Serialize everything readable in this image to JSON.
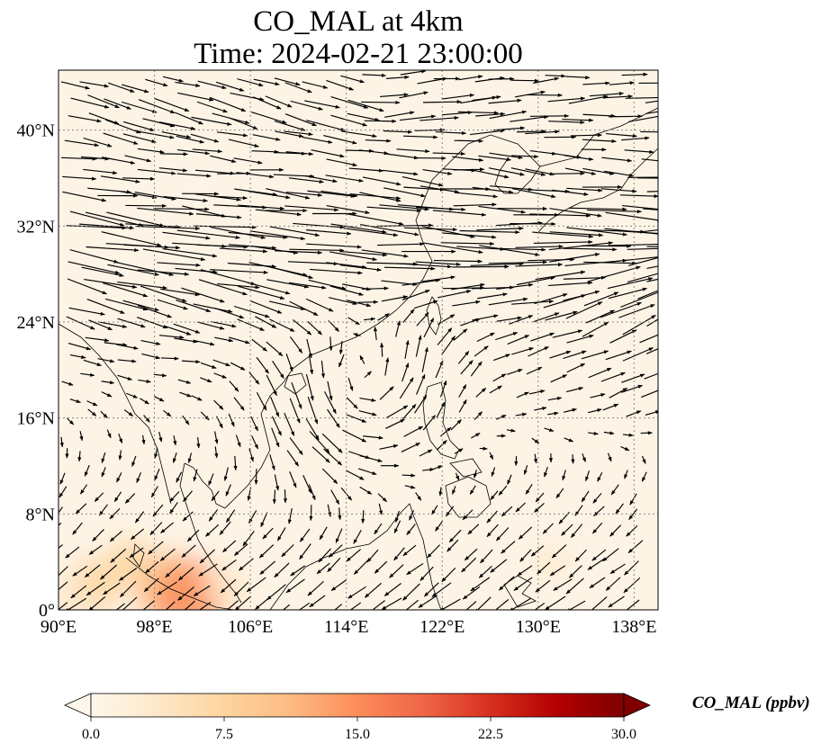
{
  "chart_data": {
    "type": "heatmap",
    "title_line1": "CO_MAL at 4km",
    "title_line2": "Time: 2024-02-21 23:00:00",
    "xlim": [
      90,
      140
    ],
    "ylim": [
      0,
      45
    ],
    "xticks": [
      90,
      98,
      106,
      114,
      122,
      130,
      138
    ],
    "xtick_labels": [
      "90°E",
      "98°E",
      "106°E",
      "114°E",
      "122°E",
      "130°E",
      "138°E"
    ],
    "yticks": [
      0,
      8,
      16,
      24,
      32,
      40
    ],
    "ytick_labels": [
      "0°",
      "8°N",
      "16°N",
      "24°N",
      "32°N",
      "40°N"
    ],
    "grid": true,
    "colormap": "OrRd",
    "colors": {
      "map_background": "#fef4e6",
      "grid": "#888888",
      "arrows": "#000000"
    },
    "colorbar": {
      "label": "CO_MAL (ppbv)",
      "ticks": [
        0.0,
        7.5,
        15.0,
        22.5,
        30.0
      ],
      "tick_labels": [
        "0.0",
        "7.5",
        "15.0",
        "22.5",
        "30.0"
      ],
      "range": [
        0,
        30
      ],
      "extend": "both"
    },
    "field_regions": [
      {
        "lon": 93,
        "lat": 2,
        "value": 8
      },
      {
        "lon": 99,
        "lat": 2,
        "value": 12
      },
      {
        "lon": 101,
        "lat": 1,
        "value": 15
      },
      {
        "lon": 96,
        "lat": 4,
        "value": 6
      },
      {
        "lon": 104,
        "lat": 2,
        "value": 5
      },
      {
        "lon": 91,
        "lat": 1,
        "value": 4
      },
      {
        "lon": 131,
        "lat": 4,
        "value": 2
      }
    ],
    "wind_pattern": "westerly jet between 24°N and 36°N, cyclonic turning near 18°N 114°E, northeasterly trades south of 20°N"
  }
}
